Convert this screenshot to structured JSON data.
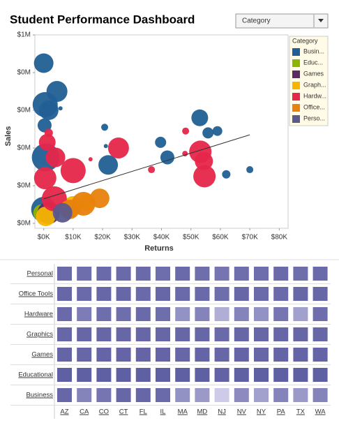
{
  "title": "Student Performance Dashboard",
  "dropdown": "Category",
  "chart_data": [
    {
      "type": "bubble",
      "xlabel": "Returns",
      "ylabel": "Sales",
      "legend_title": "Category",
      "xlim": [
        -3000,
        83000
      ],
      "ylim": [
        -26000,
        1000000
      ],
      "xticks": [
        {
          "value": 0,
          "label": "$0K"
        },
        {
          "value": 10000,
          "label": "$10K"
        },
        {
          "value": 20000,
          "label": "$20K"
        },
        {
          "value": 30000,
          "label": "$30K"
        },
        {
          "value": 40000,
          "label": "$40K"
        },
        {
          "value": 50000,
          "label": "$50K"
        },
        {
          "value": 60000,
          "label": "$60K"
        },
        {
          "value": 70000,
          "label": "$70K"
        },
        {
          "value": 80000,
          "label": "$80K"
        }
      ],
      "yticks": [
        {
          "value": 0,
          "label": "$0M"
        },
        {
          "value": 200000,
          "label": "$0M"
        },
        {
          "value": 400000,
          "label": "$0M"
        },
        {
          "value": 600000,
          "label": "$0M"
        },
        {
          "value": 800000,
          "label": "$0M"
        },
        {
          "value": 1000000,
          "label": "$1M"
        }
      ],
      "trendline": {
        "x": [
          0,
          70000
        ],
        "values": [
          130000,
          470000
        ]
      },
      "series": [
        {
          "name": "Busin...",
          "color": "#215f94",
          "x": [
            0,
            4500,
            500,
            1700,
            300,
            700,
            20700,
            21900,
            39700,
            42000,
            53000,
            55800,
            59000,
            62000,
            70000,
            5700,
            21100,
            0
          ],
          "values": [
            850000,
            700000,
            630000,
            600000,
            520000,
            350000,
            510000,
            310000,
            430000,
            350000,
            560000,
            480000,
            490000,
            260000,
            285000,
            610000,
            410000,
            74000
          ],
          "sizes": [
            196,
            225,
            324,
            196,
            100,
            400,
            25,
            196,
            64,
            100,
            144,
            64,
            49,
            36,
            25,
            9,
            9,
            324
          ]
        },
        {
          "name": "Educ...",
          "color": "#8cb400",
          "x": [
            -700
          ],
          "values": [
            56000
          ],
          "sizes": [
            144
          ]
        },
        {
          "name": "Games",
          "color": "#5b2c63",
          "x": [
            1700,
            8800
          ],
          "values": [
            56000,
            74000
          ],
          "sizes": [
            256,
            144
          ]
        },
        {
          "name": "Graph...",
          "color": "#f7b500",
          "x": [
            700,
            9950,
            14700
          ],
          "values": [
            37000,
            93000,
            111000
          ],
          "sizes": [
            196,
            196,
            144
          ]
        },
        {
          "name": "Hardw...",
          "color": "#e6264a",
          "x": [
            1700,
            1200,
            4000,
            10000,
            500,
            3600,
            25400,
            36600,
            48200,
            53200,
            54400,
            54600,
            15900,
            48000
          ],
          "values": [
            480000,
            430000,
            350000,
            280000,
            240000,
            130000,
            400000,
            285000,
            490000,
            380000,
            330000,
            250000,
            340000,
            370000
          ],
          "sizes": [
            36,
            144,
            196,
            324,
            256,
            324,
            225,
            25,
            25,
            256,
            169,
            256,
            9,
            16
          ]
        },
        {
          "name": "Office...",
          "color": "#e8820c",
          "x": [
            13500,
            19000,
            8800
          ],
          "values": [
            104000,
            133000,
            74000
          ],
          "sizes": [
            289,
            196,
            196
          ]
        },
        {
          "name": "Perso...",
          "color": "#5a5a8c",
          "x": [
            6400
          ],
          "values": [
            56000
          ],
          "sizes": [
            196
          ]
        }
      ]
    },
    {
      "type": "heatmap",
      "rows": [
        "Personal",
        "Office Tools",
        "Hardware",
        "Graphics",
        "Games",
        "Educational",
        "Business"
      ],
      "columns": [
        "AZ",
        "CA",
        "CO",
        "CT",
        "FL",
        "IL",
        "MA",
        "MD",
        "NJ",
        "NV",
        "NY",
        "PA",
        "TX",
        "WA"
      ],
      "values": [
        [
          0.88,
          0.85,
          0.88,
          0.88,
          0.88,
          0.85,
          0.88,
          0.85,
          0.8,
          0.85,
          0.85,
          0.88,
          0.85,
          0.88
        ],
        [
          0.9,
          0.88,
          0.9,
          0.9,
          0.88,
          0.9,
          0.88,
          0.88,
          0.85,
          0.9,
          0.88,
          0.88,
          0.9,
          0.9
        ],
        [
          0.88,
          0.75,
          0.85,
          0.85,
          0.88,
          0.85,
          0.6,
          0.7,
          0.4,
          0.7,
          0.6,
          0.8,
          0.5,
          0.85
        ],
        [
          0.9,
          0.9,
          0.9,
          0.9,
          0.9,
          0.9,
          0.9,
          0.9,
          0.88,
          0.9,
          0.9,
          0.9,
          0.9,
          0.9
        ],
        [
          0.92,
          0.9,
          0.92,
          0.92,
          0.92,
          0.92,
          0.9,
          0.92,
          0.9,
          0.92,
          0.9,
          0.92,
          0.92,
          0.92
        ],
        [
          0.95,
          0.95,
          0.95,
          0.95,
          0.95,
          0.95,
          0.95,
          0.95,
          0.93,
          0.95,
          0.95,
          0.95,
          0.95,
          0.95
        ],
        [
          0.9,
          0.7,
          0.8,
          0.9,
          0.9,
          0.88,
          0.6,
          0.55,
          0.2,
          0.65,
          0.5,
          0.7,
          0.55,
          0.7
        ]
      ]
    }
  ]
}
